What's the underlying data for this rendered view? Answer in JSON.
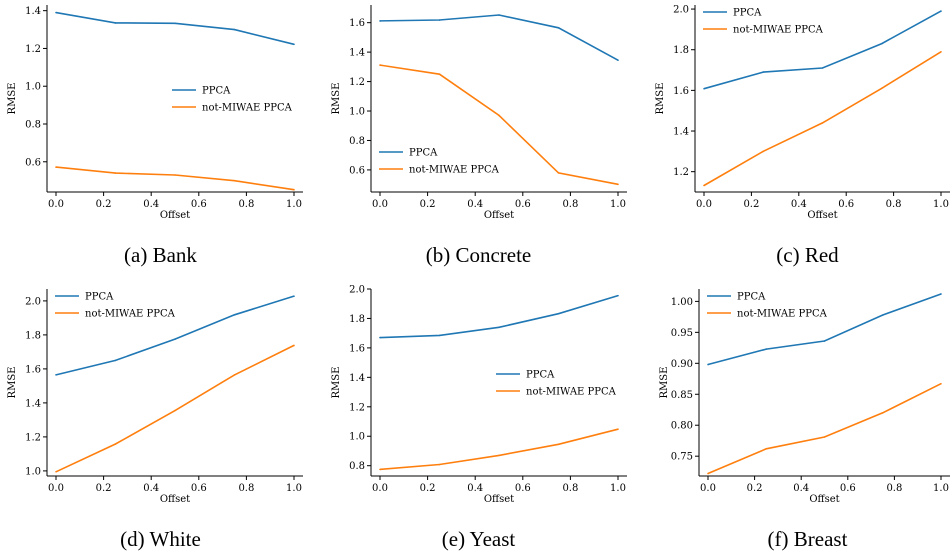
{
  "colors": {
    "ppca": "#1f77b4",
    "not_miwae_ppca": "#ff7f0e"
  },
  "panels": [
    {
      "caption": "(a) Bank",
      "legend_position": "center-right",
      "chart_data": {
        "type": "line",
        "xlabel": "Offset",
        "ylabel": "RMSE",
        "xlim": [
          0,
          1
        ],
        "ylim": [
          0.44,
          1.43
        ],
        "xticks": [
          "0.0",
          "0.2",
          "0.4",
          "0.6",
          "0.8",
          "1.0"
        ],
        "yticks": [
          "0.6",
          "0.8",
          "1.0",
          "1.2",
          "1.4"
        ],
        "x": [
          0.0,
          0.25,
          0.5,
          0.75,
          1.0
        ],
        "series": [
          {
            "name": "PPCA",
            "values": [
              1.39,
              1.335,
              1.333,
              1.3,
              1.222
            ]
          },
          {
            "name": "not-MIWAE PPCA",
            "values": [
              0.572,
              0.54,
              0.53,
              0.5,
              0.452
            ]
          }
        ]
      }
    },
    {
      "caption": "(b) Concrete",
      "legend_position": "lower-left",
      "chart_data": {
        "type": "line",
        "xlabel": "Offset",
        "ylabel": "RMSE",
        "xlim": [
          0,
          1
        ],
        "ylim": [
          0.45,
          1.72
        ],
        "xticks": [
          "0.0",
          "0.2",
          "0.4",
          "0.6",
          "0.8",
          "1.0"
        ],
        "yticks": [
          "0.6",
          "0.8",
          "1.0",
          "1.2",
          "1.4",
          "1.6"
        ],
        "x": [
          0.0,
          0.25,
          0.5,
          0.75,
          1.0
        ],
        "series": [
          {
            "name": "PPCA",
            "values": [
              1.612,
              1.618,
              1.652,
              1.565,
              1.345
            ]
          },
          {
            "name": "not-MIWAE PPCA",
            "values": [
              1.312,
              1.25,
              0.97,
              0.58,
              0.502
            ]
          }
        ]
      }
    },
    {
      "caption": "(c) Red",
      "legend_position": "upper-left",
      "chart_data": {
        "type": "line",
        "xlabel": "Offset",
        "ylabel": "RMSE",
        "xlim": [
          0,
          1
        ],
        "ylim": [
          1.1,
          2.02
        ],
        "xticks": [
          "0.0",
          "0.2",
          "0.4",
          "0.6",
          "0.8",
          "1.0"
        ],
        "yticks": [
          "1.2",
          "1.4",
          "1.6",
          "1.8",
          "2.0"
        ],
        "x": [
          0.0,
          0.25,
          0.5,
          0.75,
          1.0
        ],
        "series": [
          {
            "name": "PPCA",
            "values": [
              1.608,
              1.69,
              1.71,
              1.83,
              1.99
            ]
          },
          {
            "name": "not-MIWAE PPCA",
            "values": [
              1.132,
              1.3,
              1.44,
              1.61,
              1.79
            ]
          }
        ]
      }
    },
    {
      "caption": "(d) White",
      "legend_position": "upper-left",
      "chart_data": {
        "type": "line",
        "xlabel": "Offset",
        "ylabel": "RMSE",
        "xlim": [
          0,
          1
        ],
        "ylim": [
          0.97,
          2.07
        ],
        "xticks": [
          "0.0",
          "0.2",
          "0.4",
          "0.6",
          "0.8",
          "1.0"
        ],
        "yticks": [
          "1.0",
          "1.2",
          "1.4",
          "1.6",
          "1.8",
          "2.0"
        ],
        "x": [
          0.0,
          0.25,
          0.5,
          0.75,
          1.0
        ],
        "series": [
          {
            "name": "PPCA",
            "values": [
              1.565,
              1.65,
              1.775,
              1.918,
              2.028
            ]
          },
          {
            "name": "not-MIWAE PPCA",
            "values": [
              0.995,
              1.158,
              1.355,
              1.565,
              1.738
            ]
          }
        ]
      }
    },
    {
      "caption": "(e) Yeast",
      "legend_position": "center-right",
      "chart_data": {
        "type": "line",
        "xlabel": "Offset",
        "ylabel": "RMSE",
        "xlim": [
          0,
          1
        ],
        "ylim": [
          0.73,
          2.0
        ],
        "xticks": [
          "0.0",
          "0.2",
          "0.4",
          "0.6",
          "0.8",
          "1.0"
        ],
        "yticks": [
          "0.8",
          "1.0",
          "1.2",
          "1.4",
          "1.6",
          "1.8",
          "2.0"
        ],
        "x": [
          0.0,
          0.25,
          0.5,
          0.75,
          1.0
        ],
        "series": [
          {
            "name": "PPCA",
            "values": [
              1.67,
              1.685,
              1.74,
              1.832,
              1.955
            ]
          },
          {
            "name": "not-MIWAE PPCA",
            "values": [
              0.775,
              0.808,
              0.87,
              0.945,
              1.048
            ]
          }
        ]
      }
    },
    {
      "caption": "(f) Breast",
      "legend_position": "upper-left",
      "chart_data": {
        "type": "line",
        "xlabel": "Offset",
        "ylabel": "RMSE",
        "xlim": [
          0,
          1
        ],
        "ylim": [
          0.718,
          1.02
        ],
        "xticks": [
          "0.0",
          "0.2",
          "0.4",
          "0.6",
          "0.8",
          "1.0"
        ],
        "yticks": [
          "0.75",
          "0.80",
          "0.85",
          "0.90",
          "0.95",
          "1.00"
        ],
        "x": [
          0.0,
          0.25,
          0.5,
          0.75,
          1.0
        ],
        "series": [
          {
            "name": "PPCA",
            "values": [
              0.898,
              0.923,
              0.936,
              0.978,
              1.012
            ]
          },
          {
            "name": "not-MIWAE PPCA",
            "values": [
              0.722,
              0.762,
              0.781,
              0.82,
              0.867
            ]
          }
        ]
      }
    }
  ]
}
